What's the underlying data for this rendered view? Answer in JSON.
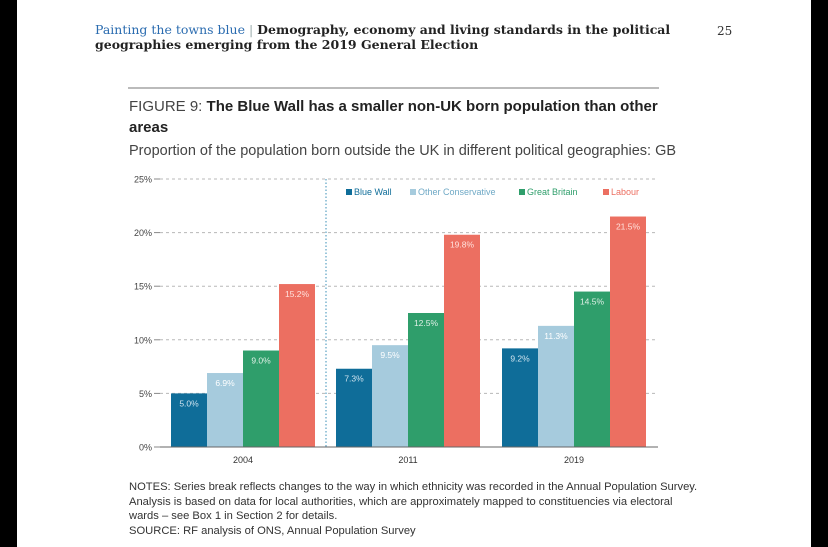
{
  "header": {
    "brand": "Painting the towns blue",
    "separator": "|",
    "title": "Demography, economy and living standards in the political geographies emerging from the 2019 General Election",
    "page_number": "25"
  },
  "figure": {
    "label": "FIGURE 9:",
    "title": "The Blue Wall has a smaller non-UK born population than other areas",
    "subtitle": "Proportion of the population born outside the UK in different political geographies: GB"
  },
  "chart_data": {
    "type": "bar",
    "categories": [
      "2004",
      "2011",
      "2019"
    ],
    "series": [
      {
        "name": "Blue Wall",
        "color": "#0f6d99",
        "values": [
          5.0,
          7.3,
          9.2
        ],
        "labels": [
          "5.0%",
          "7.3%",
          "9.2%"
        ]
      },
      {
        "name": "Other Conservative",
        "color": "#a6cbdd",
        "values": [
          6.9,
          9.5,
          11.3
        ],
        "labels": [
          "6.9%",
          "9.5%",
          "11.3%"
        ]
      },
      {
        "name": "Great Britain",
        "color": "#2f9e6b",
        "values": [
          9.0,
          12.5,
          14.5
        ],
        "labels": [
          "9.0%",
          "12.5%",
          "14.5%"
        ]
      },
      {
        "name": "Labour",
        "color": "#ec6f61",
        "values": [
          15.2,
          19.8,
          21.5
        ],
        "labels": [
          "15.2%",
          "19.8%",
          "21.5%"
        ]
      }
    ],
    "ylim": [
      0,
      25
    ],
    "yticks": [
      0,
      5,
      10,
      15,
      20,
      25
    ],
    "ytick_labels": [
      "0%",
      "5%",
      "10%",
      "15%",
      "20%",
      "25%"
    ],
    "grid": true,
    "legend_position": "top",
    "series_break": "between 2004 and 2011",
    "xlabel": "",
    "ylabel": ""
  },
  "notes": {
    "text": "NOTES: Series break reflects changes to the way in which ethnicity was recorded in the Annual Population Survey. Analysis is based on data for local authorities, which are approximately mapped to constituencies via electoral wards – see Box 1 in Section 2 for details.",
    "source": "SOURCE: RF analysis of ONS, Annual Population Survey"
  }
}
